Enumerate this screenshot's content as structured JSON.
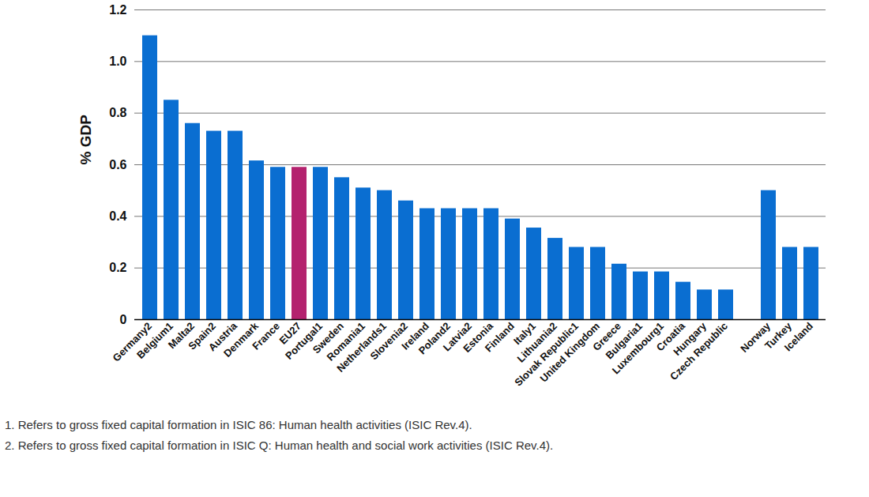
{
  "chart_data": {
    "type": "bar",
    "y_label": "% GDP",
    "categories": [
      "Germany2",
      "Belgium1",
      "Malta2",
      "Spain2",
      "Austria",
      "Denmark",
      "France",
      "EU27",
      "Portugal1",
      "Sweden",
      "Romania1",
      "Netherlands1",
      "Slovenia2",
      "Ireland",
      "Poland2",
      "Latvia2",
      "Estonia",
      "Finland",
      "Italy1",
      "Lithuania2",
      "Slovak Republic1",
      "United Kingdom",
      "Greece",
      "Bulgaria1",
      "Luxembourg1",
      "Croatia",
      "Hungary",
      "Czech Republic",
      null,
      "Norway",
      "Turkey",
      "Iceland"
    ],
    "values": [
      1.1,
      0.85,
      0.76,
      0.73,
      0.73,
      0.615,
      0.59,
      0.59,
      0.59,
      0.55,
      0.51,
      0.5,
      0.46,
      0.43,
      0.43,
      0.43,
      0.43,
      0.39,
      0.355,
      0.315,
      0.28,
      0.28,
      0.215,
      0.185,
      0.185,
      0.145,
      0.115,
      0.115,
      null,
      0.5,
      0.28,
      0.28
    ],
    "colors": [
      "#0a6ed1",
      "#0a6ed1",
      "#0a6ed1",
      "#0a6ed1",
      "#0a6ed1",
      "#0a6ed1",
      "#0a6ed1",
      "#b4226e",
      "#0a6ed1",
      "#0a6ed1",
      "#0a6ed1",
      "#0a6ed1",
      "#0a6ed1",
      "#0a6ed1",
      "#0a6ed1",
      "#0a6ed1",
      "#0a6ed1",
      "#0a6ed1",
      "#0a6ed1",
      "#0a6ed1",
      "#0a6ed1",
      "#0a6ed1",
      "#0a6ed1",
      "#0a6ed1",
      "#0a6ed1",
      "#0a6ed1",
      "#0a6ed1",
      "#0a6ed1",
      null,
      "#0a6ed1",
      "#0a6ed1",
      "#0a6ed1"
    ],
    "ylim": [
      0,
      1.2
    ],
    "yticks": [
      0,
      0.2,
      0.4,
      0.6,
      0.8,
      {
        "value": 1,
        "label": "1.0"
      },
      1.2
    ],
    "grid": true,
    "annotations": [
      "1. Refers to gross fixed capital formation in ISIC 86: Human health activities (ISIC Rev.4).",
      "2. Refers to gross fixed capital formation in ISIC Q: Human health and social work activities (ISIC Rev.4)."
    ]
  }
}
